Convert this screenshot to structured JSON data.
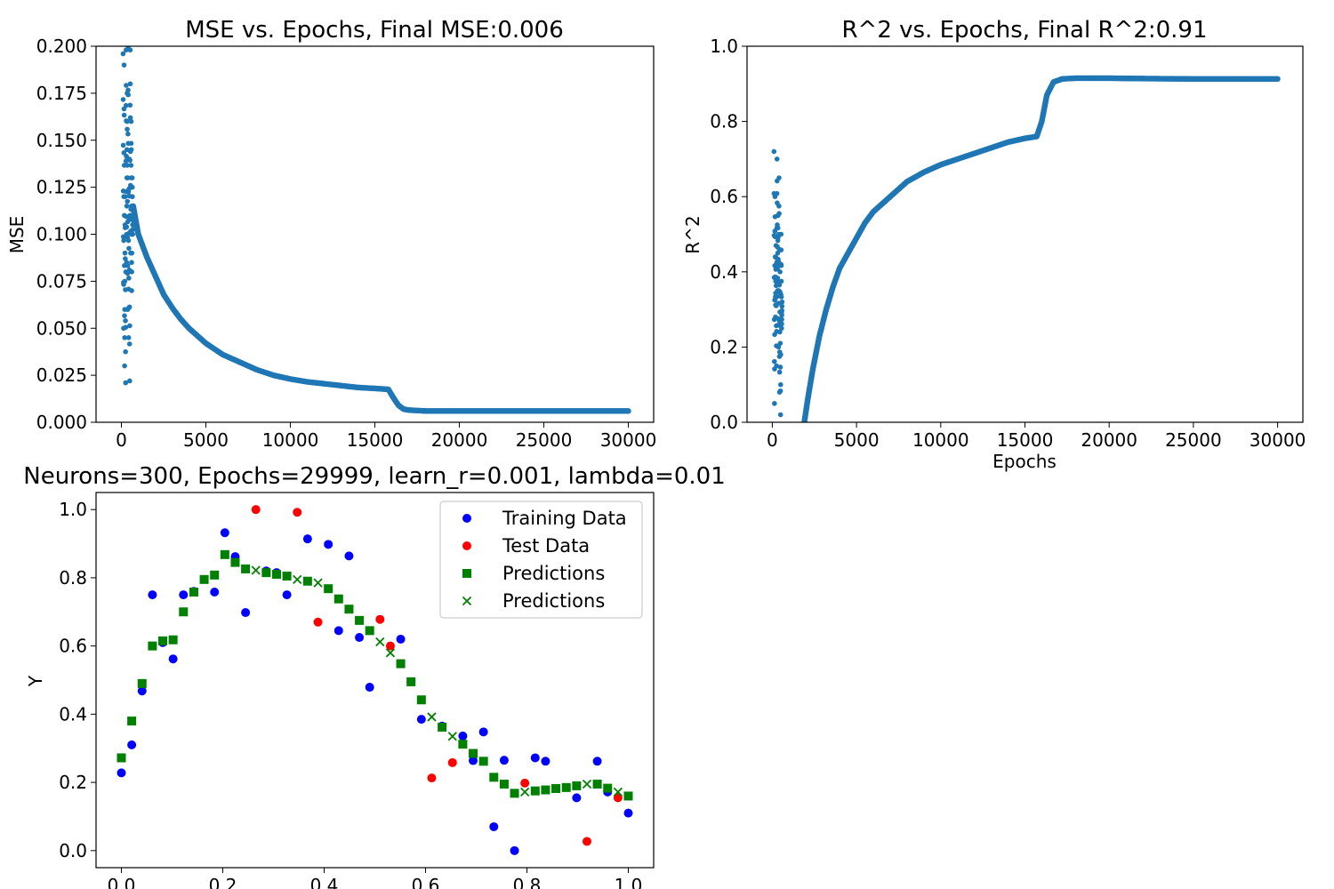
{
  "chart_data": [
    {
      "id": "mse",
      "type": "scatter",
      "title": "MSE vs. Epochs, Final MSE:0.006",
      "xlabel": "",
      "ylabel": "MSE",
      "xlim": [
        -1500,
        31500
      ],
      "ylim": [
        0,
        0.2
      ],
      "xticks": [
        0,
        5000,
        10000,
        15000,
        20000,
        25000,
        30000
      ],
      "xtick_labels": [
        "0",
        "5000",
        "10000",
        "15000",
        "20000",
        "25000",
        "30000"
      ],
      "yticks": [
        0,
        0.025,
        0.05,
        0.075,
        0.1,
        0.125,
        0.15,
        0.175,
        0.2
      ],
      "ytick_labels": [
        "0.000",
        "0.025",
        "0.050",
        "0.075",
        "0.100",
        "0.125",
        "0.150",
        "0.175",
        "0.200"
      ],
      "grid": false,
      "color": "#1f77b4",
      "early_x": [
        100,
        130,
        160,
        190,
        220,
        250,
        280,
        310,
        340,
        370,
        400,
        430,
        460,
        490,
        520,
        550,
        580,
        610,
        640,
        670,
        700
      ],
      "early_y": [
        0.196,
        0.05,
        0.19,
        0.03,
        0.12,
        0.021,
        0.198,
        0.085,
        0.175,
        0.06,
        0.2,
        0.045,
        0.14,
        0.022,
        0.198,
        0.09,
        0.16,
        0.07,
        0.13,
        0.1,
        0.115
      ],
      "curve_x": [
        700,
        1000,
        1500,
        2000,
        2500,
        3000,
        3500,
        4000,
        4500,
        5000,
        6000,
        7000,
        8000,
        9000,
        10000,
        11000,
        12000,
        13000,
        14000,
        15000,
        15800,
        16100,
        16400,
        16700,
        17000,
        18000,
        20000,
        22000,
        25000,
        28000,
        30000
      ],
      "curve_y": [
        0.115,
        0.1,
        0.088,
        0.078,
        0.068,
        0.061,
        0.055,
        0.05,
        0.046,
        0.042,
        0.036,
        0.032,
        0.028,
        0.025,
        0.023,
        0.0215,
        0.0205,
        0.0195,
        0.0185,
        0.018,
        0.0175,
        0.013,
        0.009,
        0.007,
        0.0065,
        0.006,
        0.006,
        0.006,
        0.006,
        0.006,
        0.006
      ]
    },
    {
      "id": "r2",
      "type": "scatter",
      "title": "R^2 vs. Epochs, Final R^2:0.91",
      "xlabel": "Epochs",
      "ylabel": "R^2",
      "xlim": [
        -1500,
        31500
      ],
      "ylim": [
        0,
        1
      ],
      "xticks": [
        0,
        5000,
        10000,
        15000,
        20000,
        25000,
        30000
      ],
      "xtick_labels": [
        "0",
        "5000",
        "10000",
        "15000",
        "20000",
        "25000",
        "30000"
      ],
      "yticks": [
        0,
        0.2,
        0.4,
        0.6,
        0.8,
        1.0
      ],
      "ytick_labels": [
        "0.0",
        "0.2",
        "0.4",
        "0.6",
        "0.8",
        "1.0"
      ],
      "grid": false,
      "color": "#1f77b4",
      "early_x": [
        100,
        130,
        160,
        190,
        220,
        250,
        280,
        310,
        340,
        370,
        400,
        430,
        460,
        490,
        520,
        550,
        580
      ],
      "early_y": [
        0.72,
        0.05,
        0.6,
        0.28,
        0.47,
        0.15,
        0.7,
        0.35,
        0.55,
        0.2,
        0.65,
        0.08,
        0.4,
        0.02,
        0.5,
        0.25,
        0.32
      ],
      "curve_x": [
        1900,
        2100,
        2400,
        2800,
        3200,
        3600,
        4000,
        4500,
        5000,
        5500,
        6000,
        7000,
        8000,
        9000,
        10000,
        11000,
        12000,
        13000,
        14000,
        15000,
        15700,
        16000,
        16300,
        16700,
        17200,
        18000,
        20000,
        22000,
        25000,
        28000,
        30000
      ],
      "curve_y": [
        0.0,
        0.06,
        0.14,
        0.23,
        0.3,
        0.36,
        0.41,
        0.45,
        0.49,
        0.53,
        0.56,
        0.6,
        0.64,
        0.665,
        0.685,
        0.7,
        0.715,
        0.73,
        0.745,
        0.755,
        0.76,
        0.8,
        0.87,
        0.905,
        0.913,
        0.915,
        0.915,
        0.914,
        0.913,
        0.913,
        0.913
      ]
    },
    {
      "id": "fit",
      "type": "scatter",
      "title": "Neurons=300, Epochs=29999, learn_r=0.001, lambda=0.01",
      "xlabel": "",
      "ylabel": "Y",
      "xlim": [
        -0.05,
        1.05
      ],
      "ylim": [
        -0.05,
        1.05
      ],
      "xticks": [
        0,
        0.2,
        0.4,
        0.6,
        0.8,
        1.0
      ],
      "xtick_labels": [
        "0.0",
        "0.2",
        "0.4",
        "0.6",
        "0.8",
        "1.0"
      ],
      "yticks": [
        0,
        0.2,
        0.4,
        0.6,
        0.8,
        1.0
      ],
      "ytick_labels": [
        "0.0",
        "0.2",
        "0.4",
        "0.6",
        "0.8",
        "1.0"
      ],
      "grid": false,
      "legend_position": "top-right",
      "series": [
        {
          "name": "Training Data",
          "marker": "circle",
          "color": "#0000ff",
          "x": [
            0.0,
            0.0204,
            0.0408,
            0.0612,
            0.0816,
            0.102,
            0.1224,
            0.1429,
            0.1837,
            0.2041,
            0.2245,
            0.2449,
            0.2857,
            0.3061,
            0.3265,
            0.3673,
            0.4082,
            0.4286,
            0.449,
            0.4694,
            0.4898,
            0.551,
            0.5714,
            0.5918,
            0.6327,
            0.6735,
            0.6939,
            0.7143,
            0.7347,
            0.7551,
            0.7755,
            0.8163,
            0.8367,
            0.898,
            0.9388,
            0.9592,
            1.0
          ],
          "y": [
            0.228,
            0.31,
            0.468,
            0.75,
            0.61,
            0.562,
            0.75,
            0.76,
            0.758,
            0.932,
            0.862,
            0.698,
            0.82,
            0.815,
            0.75,
            0.914,
            0.898,
            0.645,
            0.864,
            0.625,
            0.479,
            0.62,
            0.495,
            0.385,
            0.365,
            0.336,
            0.264,
            0.348,
            0.07,
            0.265,
            0.0,
            0.272,
            0.262,
            0.155,
            0.262,
            0.172,
            0.11
          ]
        },
        {
          "name": "Test Data",
          "marker": "circle",
          "color": "#ff0000",
          "x": [
            0.2653,
            0.3469,
            0.3878,
            0.5102,
            0.5306,
            0.6122,
            0.6531,
            0.7959,
            0.9184,
            0.9796
          ],
          "y": [
            1.0,
            0.992,
            0.67,
            0.678,
            0.6,
            0.213,
            0.258,
            0.198,
            0.027,
            0.155
          ]
        },
        {
          "name": "Predictions",
          "marker": "square",
          "color": "#008000",
          "x": [
            0.0,
            0.0204,
            0.0408,
            0.0612,
            0.0816,
            0.102,
            0.1224,
            0.1429,
            0.1633,
            0.1837,
            0.2041,
            0.2245,
            0.2449,
            0.2857,
            0.3061,
            0.3265,
            0.3673,
            0.4082,
            0.4286,
            0.449,
            0.4694,
            0.4898,
            0.551,
            0.5714,
            0.5918,
            0.6327,
            0.6735,
            0.6939,
            0.7143,
            0.7347,
            0.7551,
            0.7755,
            0.8163,
            0.8367,
            0.8571,
            0.8776,
            0.898,
            0.9388,
            0.9592,
            1.0
          ],
          "y": [
            0.272,
            0.38,
            0.49,
            0.6,
            0.615,
            0.618,
            0.7,
            0.758,
            0.795,
            0.808,
            0.868,
            0.845,
            0.826,
            0.815,
            0.81,
            0.805,
            0.79,
            0.768,
            0.738,
            0.708,
            0.675,
            0.645,
            0.548,
            0.495,
            0.442,
            0.362,
            0.312,
            0.285,
            0.262,
            0.215,
            0.195,
            0.168,
            0.175,
            0.178,
            0.182,
            0.185,
            0.19,
            0.195,
            0.183,
            0.16
          ]
        },
        {
          "name": "Predictions",
          "marker": "x",
          "color": "#008000",
          "x": [
            0.2653,
            0.3469,
            0.3878,
            0.5102,
            0.5306,
            0.6122,
            0.6531,
            0.7959,
            0.9184,
            0.9796
          ],
          "y": [
            0.822,
            0.795,
            0.785,
            0.612,
            0.58,
            0.392,
            0.335,
            0.172,
            0.195,
            0.172
          ]
        }
      ]
    }
  ]
}
